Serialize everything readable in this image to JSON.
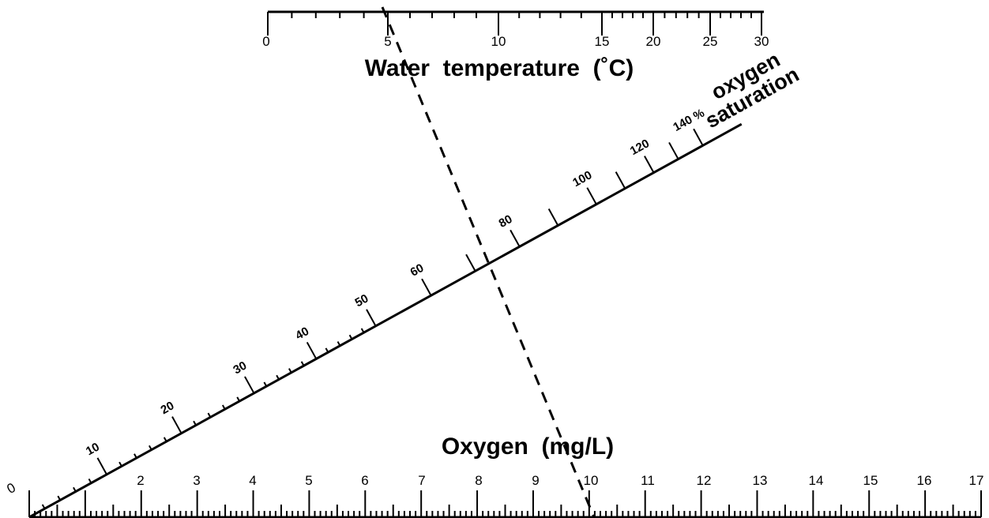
{
  "temperature_scale": {
    "title": "Water  temperature  (˚C)",
    "tick_labels": [
      "0",
      "5",
      "10",
      "15",
      "20",
      "25",
      "30"
    ],
    "range": [
      0,
      30
    ]
  },
  "oxygen_scale": {
    "title": "Oxygen  (mg/L)",
    "tick_labels": [
      "0",
      "2",
      "3",
      "4",
      "5",
      "6",
      "7",
      "8",
      "9",
      "10",
      "11",
      "12",
      "13",
      "14",
      "15",
      "16",
      "17"
    ],
    "range": [
      0,
      17
    ]
  },
  "saturation_scale": {
    "title_line1": "oxygen",
    "title_line2": "saturation",
    "tick_labels": [
      "10",
      "20",
      "30",
      "40",
      "50",
      "60",
      "80",
      "100",
      "120",
      "140 %"
    ],
    "range": [
      0,
      150
    ]
  },
  "example_line": {
    "temperature": 5,
    "saturation": 83,
    "oxygen": 10
  }
}
